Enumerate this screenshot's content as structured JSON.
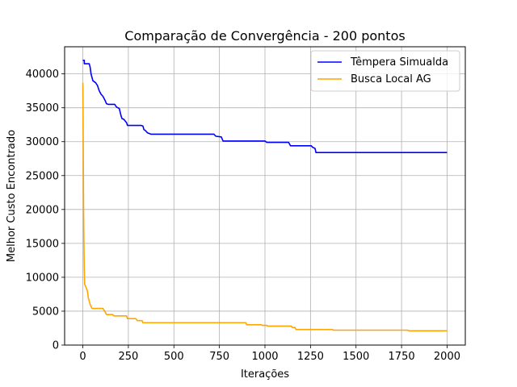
{
  "chart_data": {
    "type": "line",
    "title": "Comparação de Convergência - 200 pontos",
    "xlabel": "Iterações",
    "ylabel": "Melhor Custo Encontrado",
    "xlim": [
      -100,
      2100
    ],
    "ylim": [
      0,
      44000
    ],
    "xticks": [
      0,
      250,
      500,
      750,
      1000,
      1250,
      1500,
      1750,
      2000
    ],
    "xtick_labels": [
      "0",
      "250",
      "500",
      "750",
      "1000",
      "1250",
      "1500",
      "1750",
      "2000"
    ],
    "yticks": [
      0,
      5000,
      10000,
      15000,
      20000,
      25000,
      30000,
      35000,
      40000
    ],
    "ytick_labels": [
      "0",
      "5000",
      "10000",
      "15000",
      "20000",
      "25000",
      "30000",
      "35000",
      "40000"
    ],
    "grid": true,
    "legend_position": "top-right",
    "series": [
      {
        "name": "Têmpera Simualda",
        "color": "#0000ff",
        "points": [
          [
            0,
            42000
          ],
          [
            8,
            42000
          ],
          [
            8,
            41500
          ],
          [
            35,
            41500
          ],
          [
            40,
            41000
          ],
          [
            45,
            40000
          ],
          [
            50,
            39500
          ],
          [
            55,
            39000
          ],
          [
            70,
            38700
          ],
          [
            80,
            38300
          ],
          [
            90,
            37500
          ],
          [
            100,
            37000
          ],
          [
            110,
            36700
          ],
          [
            120,
            36200
          ],
          [
            130,
            35600
          ],
          [
            140,
            35500
          ],
          [
            175,
            35500
          ],
          [
            185,
            35100
          ],
          [
            200,
            34900
          ],
          [
            210,
            33800
          ],
          [
            215,
            33400
          ],
          [
            225,
            33300
          ],
          [
            240,
            32800
          ],
          [
            245,
            32400
          ],
          [
            320,
            32400
          ],
          [
            330,
            32300
          ],
          [
            335,
            31800
          ],
          [
            345,
            31600
          ],
          [
            355,
            31300
          ],
          [
            375,
            31100
          ],
          [
            720,
            31100
          ],
          [
            730,
            30800
          ],
          [
            760,
            30700
          ],
          [
            770,
            30100
          ],
          [
            1000,
            30100
          ],
          [
            1010,
            29900
          ],
          [
            1130,
            29900
          ],
          [
            1140,
            29400
          ],
          [
            1255,
            29400
          ],
          [
            1260,
            29200
          ],
          [
            1275,
            29000
          ],
          [
            1280,
            28400
          ],
          [
            2000,
            28400
          ]
        ]
      },
      {
        "name": "Busca Local AG",
        "color": "#ffa500",
        "points": [
          [
            0,
            38700
          ],
          [
            2,
            30000
          ],
          [
            4,
            20000
          ],
          [
            6,
            15000
          ],
          [
            8,
            11000
          ],
          [
            10,
            9000
          ],
          [
            25,
            8000
          ],
          [
            30,
            7000
          ],
          [
            40,
            6000
          ],
          [
            50,
            5400
          ],
          [
            110,
            5400
          ],
          [
            120,
            5000
          ],
          [
            130,
            4500
          ],
          [
            165,
            4500
          ],
          [
            170,
            4300
          ],
          [
            240,
            4300
          ],
          [
            245,
            3900
          ],
          [
            290,
            3900
          ],
          [
            300,
            3600
          ],
          [
            325,
            3600
          ],
          [
            330,
            3300
          ],
          [
            895,
            3300
          ],
          [
            900,
            3000
          ],
          [
            980,
            3000
          ],
          [
            985,
            2900
          ],
          [
            1010,
            2900
          ],
          [
            1015,
            2800
          ],
          [
            1145,
            2800
          ],
          [
            1150,
            2600
          ],
          [
            1165,
            2600
          ],
          [
            1170,
            2300
          ],
          [
            1370,
            2300
          ],
          [
            1375,
            2200
          ],
          [
            1785,
            2200
          ],
          [
            1790,
            2100
          ],
          [
            2000,
            2100
          ]
        ]
      }
    ]
  }
}
